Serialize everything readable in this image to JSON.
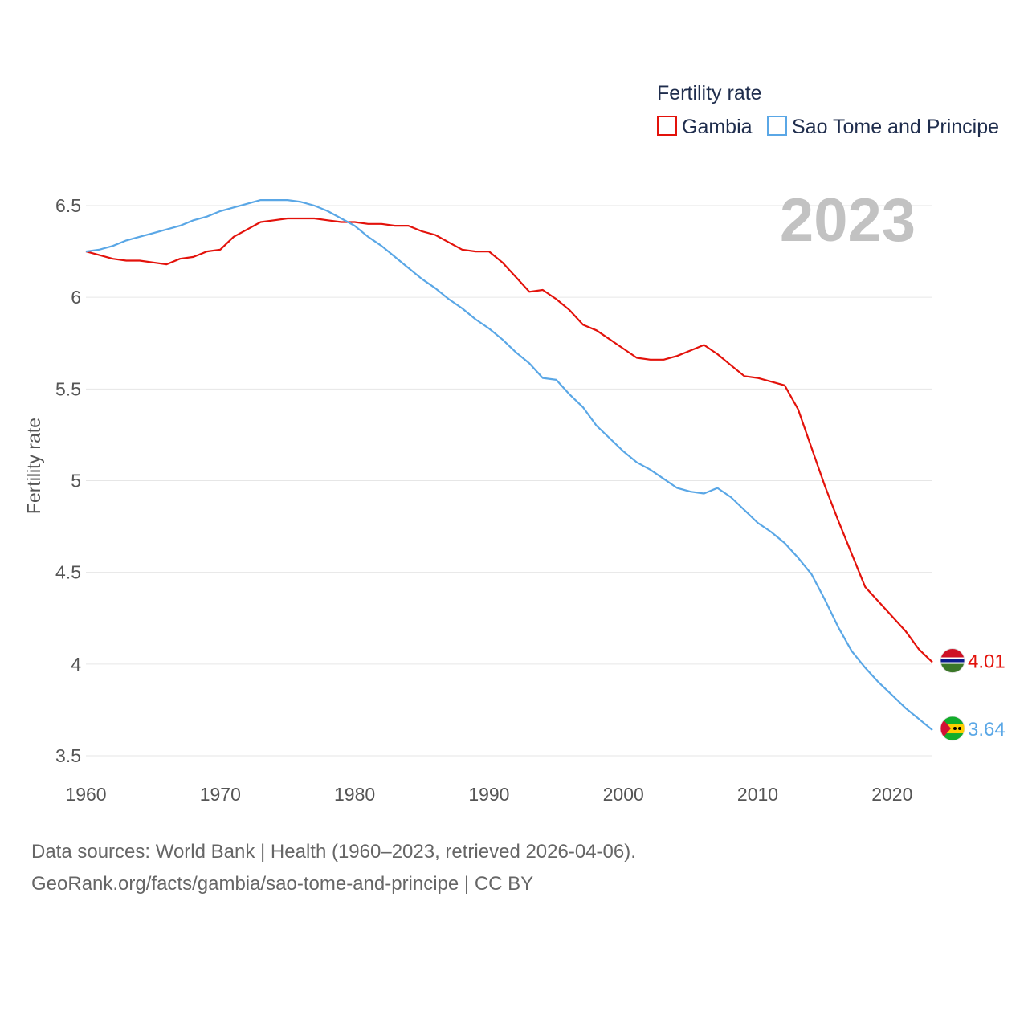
{
  "chart_data": {
    "type": "line",
    "title": "Fertility rate",
    "xlabel": "",
    "ylabel": "Fertility rate",
    "xlim": [
      1960,
      2023
    ],
    "ylim": [
      3.5,
      6.7
    ],
    "x_ticks": [
      1960,
      1970,
      1980,
      1990,
      2000,
      2010,
      2020
    ],
    "y_ticks": [
      3.5,
      4,
      4.5,
      5,
      5.5,
      6,
      6.5
    ],
    "y_tick_labels": [
      "3.5",
      "4",
      "4.5",
      "5",
      "5.5",
      "6",
      "6.5"
    ],
    "grid": true,
    "legend": {
      "title": "Fertility rate",
      "position": "top-right"
    },
    "watermark_year": "2023",
    "x": [
      1960,
      1961,
      1962,
      1963,
      1964,
      1965,
      1966,
      1967,
      1968,
      1969,
      1970,
      1971,
      1972,
      1973,
      1974,
      1975,
      1976,
      1977,
      1978,
      1979,
      1980,
      1981,
      1982,
      1983,
      1984,
      1985,
      1986,
      1987,
      1988,
      1989,
      1990,
      1991,
      1992,
      1993,
      1994,
      1995,
      1996,
      1997,
      1998,
      1999,
      2000,
      2001,
      2002,
      2003,
      2004,
      2005,
      2006,
      2007,
      2008,
      2009,
      2010,
      2011,
      2012,
      2013,
      2014,
      2015,
      2016,
      2017,
      2018,
      2019,
      2020,
      2021,
      2022,
      2023
    ],
    "series": [
      {
        "name": "Gambia",
        "color": "#e3120b",
        "end_label": "4.01",
        "values": [
          6.25,
          6.23,
          6.21,
          6.2,
          6.2,
          6.19,
          6.18,
          6.21,
          6.22,
          6.25,
          6.26,
          6.33,
          6.37,
          6.41,
          6.42,
          6.43,
          6.43,
          6.43,
          6.42,
          6.41,
          6.41,
          6.4,
          6.4,
          6.39,
          6.39,
          6.36,
          6.34,
          6.3,
          6.26,
          6.25,
          6.25,
          6.19,
          6.11,
          6.03,
          6.04,
          5.99,
          5.93,
          5.85,
          5.82,
          5.77,
          5.72,
          5.67,
          5.66,
          5.66,
          5.68,
          5.71,
          5.74,
          5.69,
          5.63,
          5.57,
          5.56,
          5.54,
          5.52,
          5.39,
          5.18,
          4.97,
          4.78,
          4.6,
          4.42,
          4.34,
          4.26,
          4.18,
          4.08,
          4.01
        ]
      },
      {
        "name": "Sao Tome and Principe",
        "color": "#5aa7e6",
        "end_label": "3.64",
        "values": [
          6.25,
          6.26,
          6.28,
          6.31,
          6.33,
          6.35,
          6.37,
          6.39,
          6.42,
          6.44,
          6.47,
          6.49,
          6.51,
          6.53,
          6.53,
          6.53,
          6.52,
          6.5,
          6.47,
          6.43,
          6.39,
          6.33,
          6.28,
          6.22,
          6.16,
          6.1,
          6.05,
          5.99,
          5.94,
          5.88,
          5.83,
          5.77,
          5.7,
          5.64,
          5.56,
          5.55,
          5.47,
          5.4,
          5.3,
          5.23,
          5.16,
          5.1,
          5.06,
          5.01,
          4.96,
          4.94,
          4.93,
          4.96,
          4.91,
          4.84,
          4.77,
          4.72,
          4.66,
          4.58,
          4.49,
          4.35,
          4.2,
          4.07,
          3.98,
          3.9,
          3.83,
          3.76,
          3.7,
          3.64
        ]
      }
    ]
  },
  "footer": {
    "line1": "Data sources: World Bank | Health (1960–2023, retrieved 2026-04-06).",
    "line2": "GeoRank.org/facts/gambia/sao-tome-and-principe | CC BY"
  },
  "colors": {
    "gambia_flag": [
      "#ce1126",
      "#ffffff",
      "#0c1c8c",
      "#3a7728"
    ],
    "stp_flag": [
      "#12ad2b",
      "#ffce00",
      "#d21034",
      "#000000"
    ]
  }
}
